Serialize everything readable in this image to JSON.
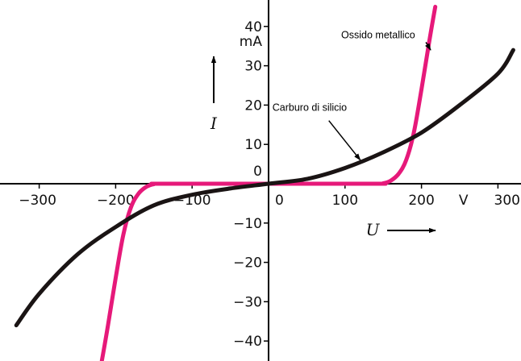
{
  "chart_data": {
    "type": "line",
    "title": "",
    "xlabel": "U",
    "ylabel": "I",
    "x_unit": "V",
    "y_unit": "mA",
    "xlim": [
      -330,
      320
    ],
    "ylim": [
      -45,
      45
    ],
    "x_ticks": [
      {
        "value": -300,
        "label": "−300"
      },
      {
        "value": -200,
        "label": "−200"
      },
      {
        "value": -100,
        "label": "−100"
      },
      {
        "value": 0,
        "label": "0"
      },
      {
        "value": 100,
        "label": "100"
      },
      {
        "value": 200,
        "label": "200"
      },
      {
        "value": 300,
        "label": "300"
      }
    ],
    "y_ticks": [
      {
        "value": 40,
        "label": "40"
      },
      {
        "value": 30,
        "label": "30"
      },
      {
        "value": 20,
        "label": "20"
      },
      {
        "value": 10,
        "label": "10"
      },
      {
        "value": 0,
        "label": "0"
      },
      {
        "value": -10,
        "label": "−10"
      },
      {
        "value": -20,
        "label": "−20"
      },
      {
        "value": -30,
        "label": "−30"
      },
      {
        "value": -40,
        "label": "−40"
      }
    ],
    "grid": false,
    "series": [
      {
        "name": "Ossido metallico",
        "color": "#e6197a",
        "points": [
          [
            -218,
            -45
          ],
          [
            -210,
            -36
          ],
          [
            -200,
            -24
          ],
          [
            -190,
            -13
          ],
          [
            -180,
            -6
          ],
          [
            -170,
            -2.5
          ],
          [
            -160,
            -0.8
          ],
          [
            -150,
            -0.1
          ],
          [
            -140,
            0
          ],
          [
            0,
            0
          ],
          [
            140,
            0
          ],
          [
            150,
            0.1
          ],
          [
            160,
            0.8
          ],
          [
            170,
            2.5
          ],
          [
            180,
            6
          ],
          [
            190,
            13
          ],
          [
            200,
            24
          ],
          [
            210,
            36
          ],
          [
            218,
            45
          ]
        ]
      },
      {
        "name": "Carburo di silicio",
        "color": "#1a1414",
        "points": [
          [
            -330,
            -36
          ],
          [
            -300,
            -28
          ],
          [
            -250,
            -18
          ],
          [
            -200,
            -11
          ],
          [
            -150,
            -5.5
          ],
          [
            -100,
            -2.8
          ],
          [
            -50,
            -1.2
          ],
          [
            0,
            0
          ],
          [
            50,
            1.2
          ],
          [
            100,
            4
          ],
          [
            150,
            8
          ],
          [
            200,
            13
          ],
          [
            250,
            20
          ],
          [
            300,
            28
          ],
          [
            320,
            34
          ]
        ]
      }
    ],
    "annotations": [
      {
        "text": "Ossido metallico",
        "x": 95,
        "y": 37,
        "arrow_to": [
          212,
          34
        ]
      },
      {
        "text": "Carburo di silicio",
        "x": 5,
        "y": 18.5,
        "arrow_to": [
          120,
          6
        ]
      }
    ],
    "arrows": {
      "current_arrow_label": "I",
      "voltage_arrow_label": "U"
    }
  }
}
